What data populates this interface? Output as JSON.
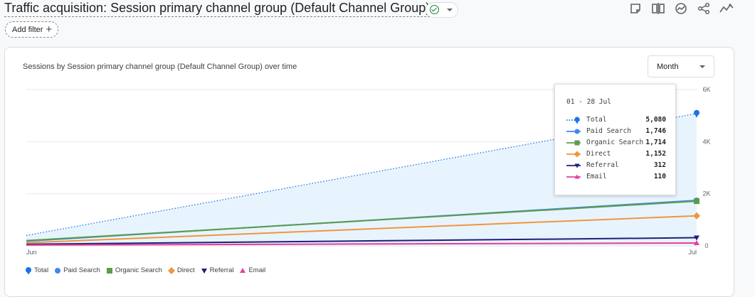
{
  "header": {
    "title": "Traffic acquisition: Session primary channel group (Default Channel Group)",
    "add_filter_label": "Add filter",
    "tools": [
      "edit-report-icon",
      "compare-icon",
      "insights-icon",
      "share-icon",
      "trend-icon"
    ]
  },
  "card": {
    "title": "Sessions by Session primary channel group (Default Channel Group) over time",
    "granularity": "Month"
  },
  "chart_data": {
    "type": "line",
    "title": "Sessions by Session primary channel group (Default Channel Group) over time",
    "x": [
      "Jun",
      "Jul"
    ],
    "ylim": [
      0,
      6000
    ],
    "yticks": [
      "0",
      "2K",
      "4K",
      "6K"
    ],
    "y_axis_side": "right",
    "grid": true,
    "legend_position": "bottom-left",
    "series": [
      {
        "name": "Total",
        "values": [
          400,
          5080
        ],
        "color": "#1a73e8",
        "marker": "pin",
        "style": "dotted",
        "fill": "#e8f4fd"
      },
      {
        "name": "Paid Search",
        "values": [
          180,
          1746
        ],
        "color": "#4285f4",
        "marker": "circle",
        "style": "solid"
      },
      {
        "name": "Organic Search",
        "values": [
          200,
          1714
        ],
        "color": "#5b9d4a",
        "marker": "square",
        "style": "solid"
      },
      {
        "name": "Direct",
        "values": [
          120,
          1152
        ],
        "color": "#f0953e",
        "marker": "diamond",
        "style": "solid"
      },
      {
        "name": "Referral",
        "values": [
          60,
          312
        ],
        "color": "#1f1f7a",
        "marker": "triangle-down",
        "style": "solid"
      },
      {
        "name": "Email",
        "values": [
          30,
          110
        ],
        "color": "#e5409a",
        "marker": "triangle-up",
        "style": "solid"
      }
    ]
  },
  "tooltip": {
    "date": "01 - 28 Jul",
    "rows": [
      {
        "label": "Total",
        "value": "5,080"
      },
      {
        "label": "Paid Search",
        "value": "1,746"
      },
      {
        "label": "Organic Search",
        "value": "1,714"
      },
      {
        "label": "Direct",
        "value": "1,152"
      },
      {
        "label": "Referral",
        "value": "312"
      },
      {
        "label": "Email",
        "value": "110"
      }
    ]
  }
}
